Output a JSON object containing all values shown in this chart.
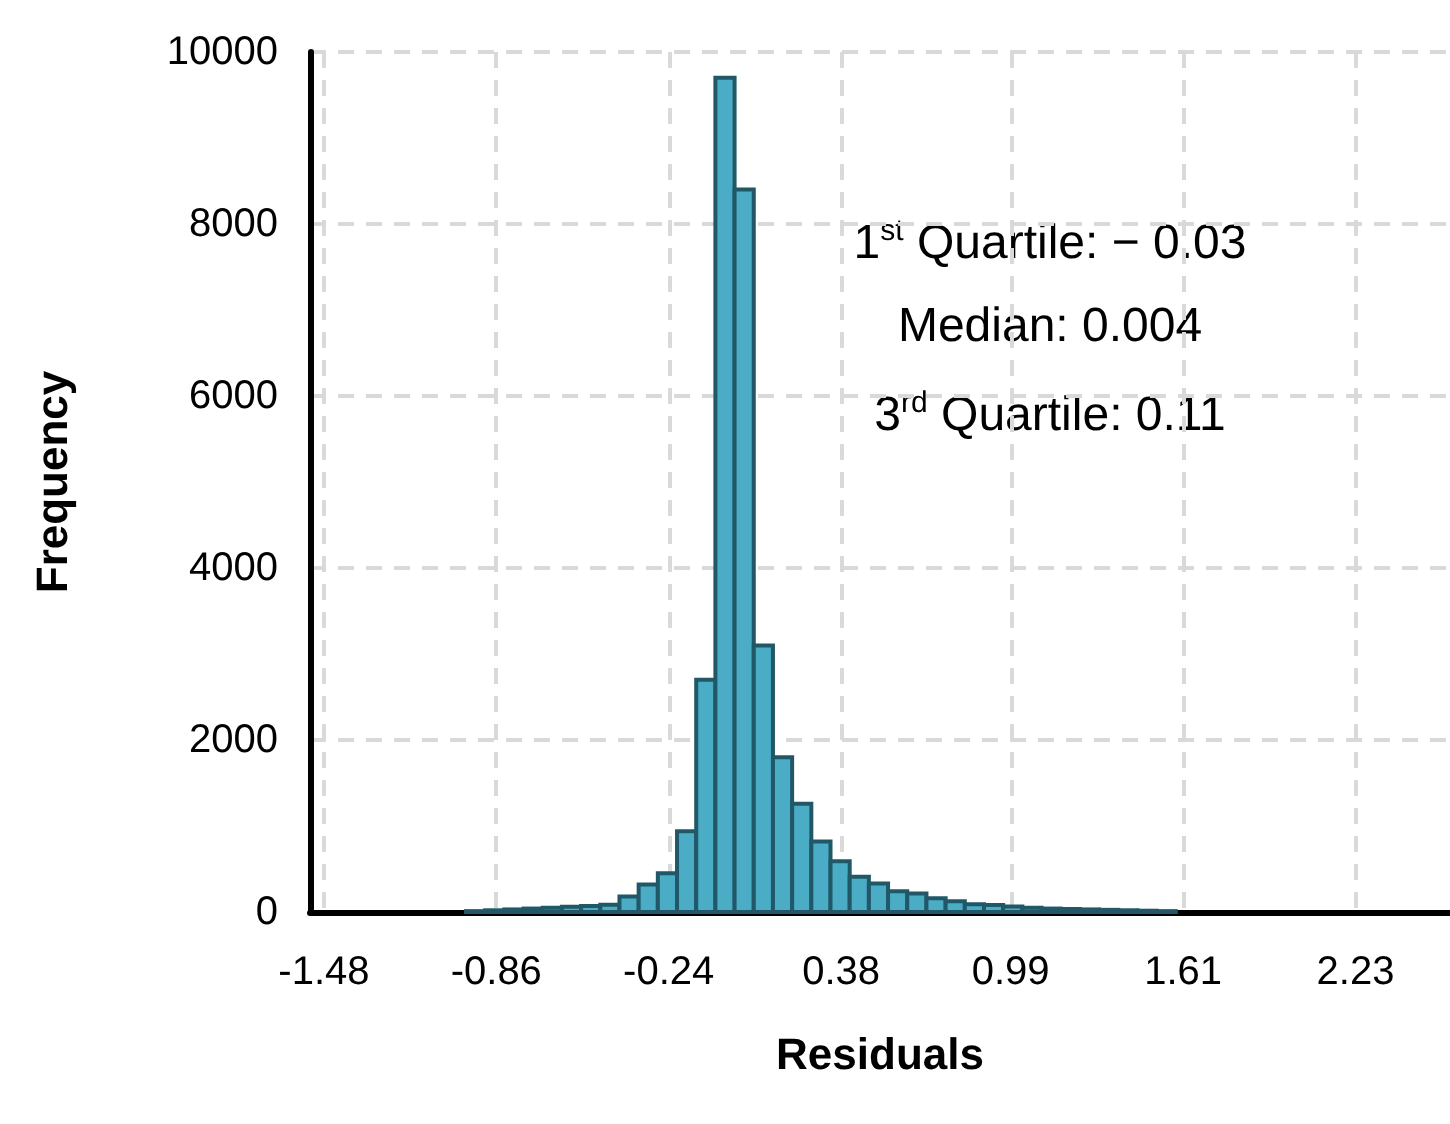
{
  "chart_data": {
    "type": "histogram",
    "xlabel": "Residuals",
    "ylabel": "Frequency",
    "bins": [
      -0.969,
      -0.9,
      -0.831,
      -0.762,
      -0.693,
      -0.624,
      -0.555,
      -0.486,
      -0.417,
      -0.348,
      -0.279,
      -0.21,
      -0.141,
      -0.072,
      -0.003,
      0.066,
      0.135,
      0.204,
      0.273,
      0.342,
      0.411,
      0.48,
      0.549,
      0.618,
      0.687,
      0.756,
      0.825,
      0.894,
      0.963,
      1.032,
      1.101,
      1.17,
      1.239,
      1.308,
      1.377,
      1.446,
      1.515,
      1.584
    ],
    "values": [
      10,
      20,
      30,
      40,
      50,
      60,
      70,
      85,
      180,
      320,
      450,
      940,
      2700,
      9700,
      8400,
      3100,
      1800,
      1260,
      820,
      590,
      410,
      330,
      240,
      215,
      160,
      125,
      90,
      80,
      65,
      50,
      40,
      35,
      30,
      25,
      20,
      15,
      10
    ],
    "color": "#4bacc6",
    "xlim": [
      -1.53,
      2.57
    ],
    "xticks": [
      -1.48,
      -0.86,
      -0.24,
      0.38,
      0.99,
      1.61,
      2.23
    ],
    "ylim": [
      0,
      10000
    ],
    "yticks": [
      0,
      2000,
      4000,
      6000,
      8000,
      10000
    ],
    "grid": true,
    "annotations": [
      "1$^{st}$ Quartile: − 0.03",
      "Median: 0.004",
      "3$^{rd}$ Quartile: 0.11"
    ]
  }
}
